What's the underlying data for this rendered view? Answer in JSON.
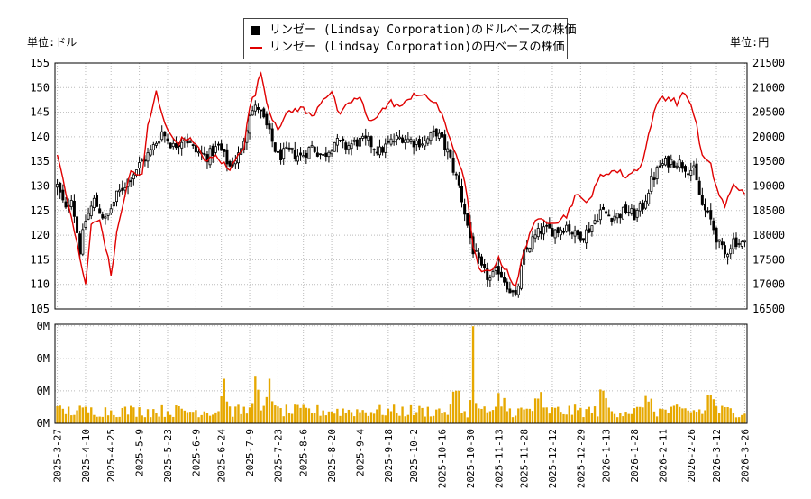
{
  "chart_data": {
    "type": "candlestick+line+volume",
    "legend": [
      {
        "label": "リンゼー (Lindsay Corporation)のドルベースの株価",
        "color": "#000000",
        "kind": "candle"
      },
      {
        "label": "リンゼー (Lindsay Corporation)の円ベースの株価",
        "color": "#e00000",
        "kind": "line"
      }
    ],
    "left_unit": "単位:ドル",
    "right_unit": "単位:円",
    "y_left": {
      "min": 105,
      "max": 155,
      "ticks": [
        105,
        110,
        115,
        120,
        125,
        130,
        135,
        140,
        145,
        150,
        155
      ]
    },
    "y_right": {
      "min": 16500,
      "max": 21500,
      "ticks": [
        16500,
        17000,
        17500,
        18000,
        18500,
        19000,
        19500,
        20000,
        20500,
        21000,
        21500
      ]
    },
    "volume_axis": {
      "tick_labels": [
        "0M",
        "0M",
        "0M",
        "0M"
      ]
    },
    "x_labels": [
      "2025-3-27",
      "2025-4-10",
      "2025-4-25",
      "2025-5-9",
      "2025-5-23",
      "2025-6-9",
      "2025-6-24",
      "2025-7-9",
      "2025-7-23",
      "2025-8-6",
      "2025-8-20",
      "2025-9-4",
      "2025-9-18",
      "2025-10-2",
      "2025-10-16",
      "2025-10-30",
      "2025-11-13",
      "2025-11-28",
      "2025-12-12",
      "2025-12-29",
      "2026-1-13",
      "2026-1-28",
      "2026-2-11",
      "2026-2-26",
      "2026-3-12",
      "2026-3-26"
    ],
    "close_anchors": [
      [
        0,
        130
      ],
      [
        3,
        125
      ],
      [
        5,
        128
      ],
      [
        8,
        117
      ],
      [
        10,
        123
      ],
      [
        13,
        127
      ],
      [
        17,
        123
      ],
      [
        21,
        128
      ],
      [
        26,
        132
      ],
      [
        30,
        135
      ],
      [
        33,
        137
      ],
      [
        37,
        141
      ],
      [
        41,
        138
      ],
      [
        45,
        140
      ],
      [
        49,
        137
      ],
      [
        53,
        136
      ],
      [
        57,
        138
      ],
      [
        61,
        134
      ],
      [
        65,
        137
      ],
      [
        68,
        145
      ],
      [
        71,
        146
      ],
      [
        74,
        142
      ],
      [
        78,
        136
      ],
      [
        82,
        137
      ],
      [
        86,
        136
      ],
      [
        90,
        138
      ],
      [
        94,
        136
      ],
      [
        98,
        139
      ],
      [
        102,
        138
      ],
      [
        106,
        139
      ],
      [
        110,
        139
      ],
      [
        114,
        137
      ],
      [
        118,
        139
      ],
      [
        122,
        140
      ],
      [
        126,
        139
      ],
      [
        130,
        139
      ],
      [
        134,
        141
      ],
      [
        138,
        137
      ],
      [
        142,
        130
      ],
      [
        145,
        122
      ],
      [
        147,
        117
      ],
      [
        150,
        113
      ],
      [
        153,
        111
      ],
      [
        156,
        113
      ],
      [
        159,
        110
      ],
      [
        162,
        107
      ],
      [
        165,
        116
      ],
      [
        168,
        119
      ],
      [
        171,
        121
      ],
      [
        174,
        121
      ],
      [
        177,
        121
      ],
      [
        180,
        122
      ],
      [
        183,
        120
      ],
      [
        186,
        120
      ],
      [
        189,
        122
      ],
      [
        192,
        125
      ],
      [
        195,
        124
      ],
      [
        198,
        124
      ],
      [
        201,
        125
      ],
      [
        204,
        124
      ],
      [
        207,
        126
      ],
      [
        210,
        131
      ],
      [
        213,
        134
      ],
      [
        216,
        135
      ],
      [
        219,
        135
      ],
      [
        222,
        134
      ],
      [
        225,
        133
      ],
      [
        228,
        126
      ],
      [
        231,
        123
      ],
      [
        234,
        118
      ],
      [
        236,
        116
      ],
      [
        239,
        119
      ],
      [
        243,
        118
      ]
    ],
    "yen_anchors": [
      [
        0,
        19700
      ],
      [
        3,
        18800
      ],
      [
        5,
        18400
      ],
      [
        8,
        17500
      ],
      [
        10,
        17000
      ],
      [
        12,
        18200
      ],
      [
        15,
        18300
      ],
      [
        17,
        17800
      ],
      [
        19,
        17200
      ],
      [
        21,
        18000
      ],
      [
        23,
        18600
      ],
      [
        26,
        19300
      ],
      [
        30,
        19200
      ],
      [
        32,
        20200
      ],
      [
        35,
        20900
      ],
      [
        37,
        20500
      ],
      [
        40,
        20000
      ],
      [
        43,
        19900
      ],
      [
        46,
        20000
      ],
      [
        49,
        19800
      ],
      [
        53,
        19500
      ],
      [
        56,
        19600
      ],
      [
        58,
        19500
      ],
      [
        61,
        19300
      ],
      [
        64,
        19700
      ],
      [
        66,
        19800
      ],
      [
        68,
        20600
      ],
      [
        70,
        20900
      ],
      [
        72,
        21300
      ],
      [
        75,
        20500
      ],
      [
        78,
        20200
      ],
      [
        82,
        20500
      ],
      [
        86,
        20600
      ],
      [
        90,
        20400
      ],
      [
        94,
        20800
      ],
      [
        97,
        20900
      ],
      [
        100,
        20400
      ],
      [
        103,
        20700
      ],
      [
        107,
        20800
      ],
      [
        110,
        20300
      ],
      [
        114,
        20500
      ],
      [
        118,
        20700
      ],
      [
        122,
        20600
      ],
      [
        126,
        20900
      ],
      [
        130,
        20800
      ],
      [
        134,
        20700
      ],
      [
        138,
        20100
      ],
      [
        142,
        19500
      ],
      [
        145,
        18800
      ],
      [
        147,
        17700
      ],
      [
        150,
        17200
      ],
      [
        153,
        17300
      ],
      [
        156,
        17500
      ],
      [
        159,
        17300
      ],
      [
        162,
        16900
      ],
      [
        165,
        17700
      ],
      [
        168,
        18200
      ],
      [
        171,
        18300
      ],
      [
        174,
        18300
      ],
      [
        177,
        18300
      ],
      [
        180,
        18400
      ],
      [
        183,
        18800
      ],
      [
        186,
        18700
      ],
      [
        189,
        18800
      ],
      [
        192,
        19200
      ],
      [
        195,
        19300
      ],
      [
        198,
        19300
      ],
      [
        201,
        19200
      ],
      [
        204,
        19300
      ],
      [
        207,
        19500
      ],
      [
        210,
        20300
      ],
      [
        213,
        20800
      ],
      [
        216,
        20800
      ],
      [
        219,
        20700
      ],
      [
        222,
        20900
      ],
      [
        225,
        20500
      ],
      [
        228,
        19600
      ],
      [
        231,
        19400
      ],
      [
        234,
        18800
      ],
      [
        236,
        18600
      ],
      [
        239,
        19000
      ],
      [
        243,
        18900
      ]
    ],
    "volume_spikes": [
      [
        59,
        0.45
      ],
      [
        70,
        0.48
      ],
      [
        75,
        0.45
      ],
      [
        141,
        0.33
      ],
      [
        147,
        0.98
      ],
      [
        157,
        0.17
      ],
      [
        170,
        0.25
      ],
      [
        193,
        0.33
      ],
      [
        209,
        0.22
      ],
      [
        231,
        0.29
      ]
    ]
  }
}
